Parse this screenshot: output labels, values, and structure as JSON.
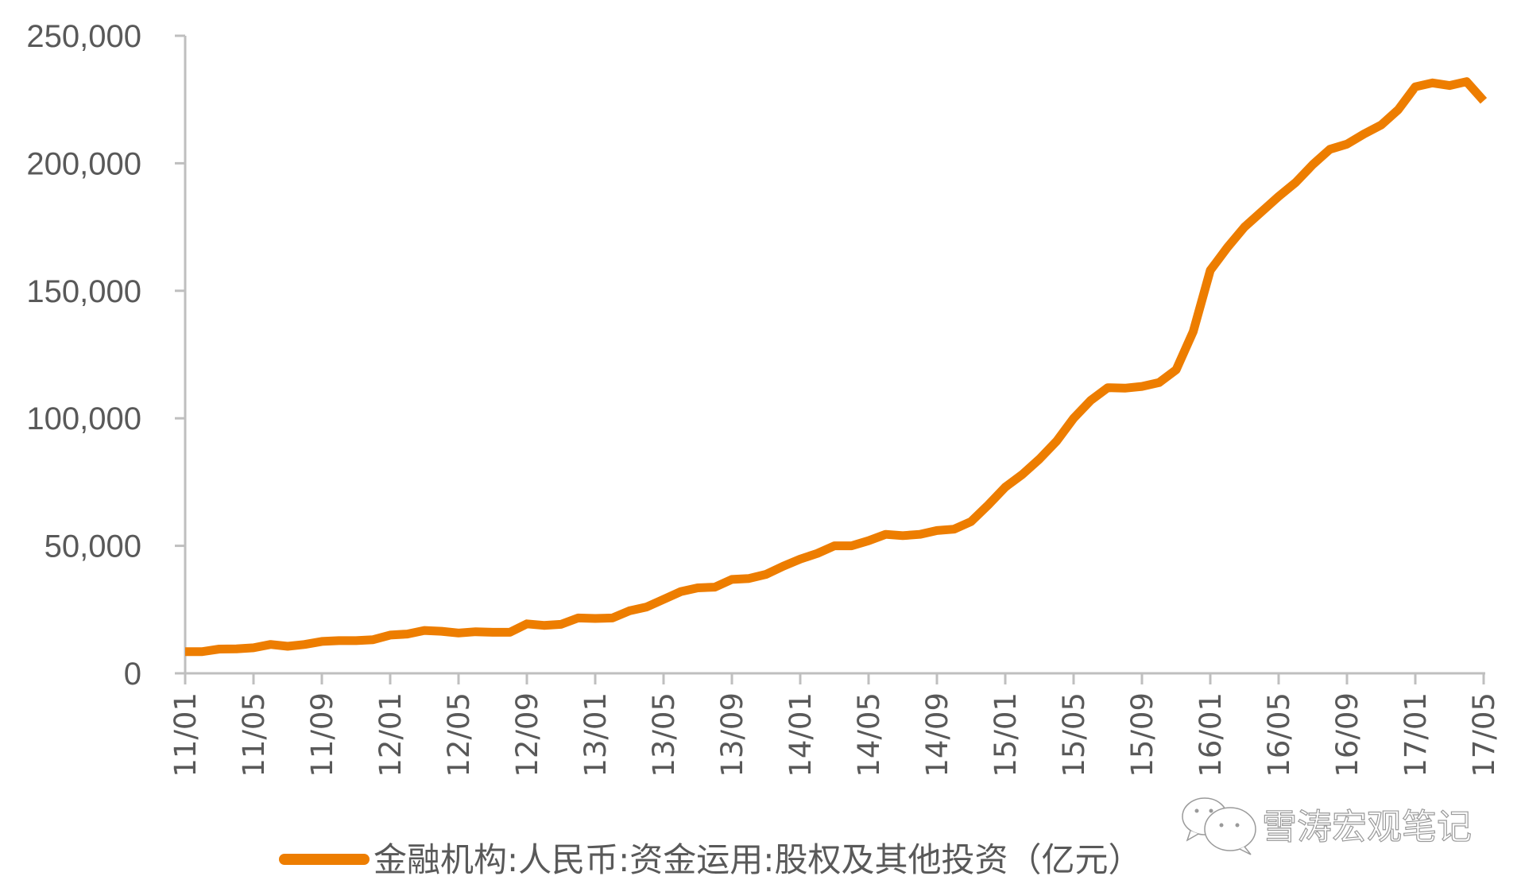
{
  "chart_data": {
    "type": "line",
    "title": "",
    "xlabel": "",
    "ylabel": "",
    "ylim": [
      0,
      250000
    ],
    "yticks": [
      "0",
      "50,000",
      "100,000",
      "150,000",
      "200,000",
      "250,000"
    ],
    "ytick_values": [
      0,
      50000,
      100000,
      150000,
      200000,
      250000
    ],
    "xtick_labels": [
      "11/01",
      "11/05",
      "11/09",
      "12/01",
      "12/05",
      "12/09",
      "13/01",
      "13/05",
      "13/09",
      "14/01",
      "14/05",
      "14/09",
      "15/01",
      "15/05",
      "15/09",
      "16/01",
      "16/05",
      "16/09",
      "17/01",
      "17/05"
    ],
    "grid": false,
    "legend_position": "bottom",
    "series": [
      {
        "name": "金融机构:人民币:资金运用:股权及其他投资（亿元）",
        "color": "#ED7D00",
        "x": [
          "11/01",
          "11/02",
          "11/03",
          "11/04",
          "11/05",
          "11/06",
          "11/07",
          "11/08",
          "11/09",
          "11/10",
          "11/11",
          "11/12",
          "12/01",
          "12/02",
          "12/03",
          "12/04",
          "12/05",
          "12/06",
          "12/07",
          "12/08",
          "12/09",
          "12/10",
          "12/11",
          "12/12",
          "13/01",
          "13/02",
          "13/03",
          "13/04",
          "13/05",
          "13/06",
          "13/07",
          "13/08",
          "13/09",
          "13/10",
          "13/11",
          "13/12",
          "14/01",
          "14/02",
          "14/03",
          "14/04",
          "14/05",
          "14/06",
          "14/07",
          "14/08",
          "14/09",
          "14/10",
          "14/11",
          "14/12",
          "15/01",
          "15/02",
          "15/03",
          "15/04",
          "15/05",
          "15/06",
          "15/07",
          "15/08",
          "15/09",
          "15/10",
          "15/11",
          "15/12",
          "16/01",
          "16/02",
          "16/03",
          "16/04",
          "16/05",
          "16/06",
          "16/07",
          "16/08",
          "16/09",
          "16/10",
          "16/11",
          "16/12",
          "17/01",
          "17/02",
          "17/03",
          "17/04",
          "17/05"
        ],
        "values": [
          8500,
          8500,
          9500,
          9600,
          10000,
          11300,
          10600,
          11300,
          12500,
          12800,
          12800,
          13200,
          15000,
          15400,
          16800,
          16500,
          15800,
          16300,
          16100,
          16100,
          19400,
          18800,
          19200,
          21700,
          21500,
          21700,
          24500,
          26000,
          29000,
          32000,
          33500,
          33800,
          36800,
          37200,
          38800,
          42000,
          44800,
          47000,
          50000,
          50000,
          52000,
          54500,
          54000,
          54500,
          56000,
          56500,
          59500,
          66000,
          73000,
          78000,
          84000,
          91000,
          100000,
          107000,
          112000,
          111800,
          112500,
          114000,
          119000,
          134000,
          158000,
          167000,
          175000,
          181000,
          187000,
          192500,
          199500,
          205500,
          207500,
          211500,
          215000,
          221000,
          230000,
          231500,
          230500,
          232000,
          224500
        ]
      }
    ]
  },
  "legend": {
    "label": "金融机构:人民币:资金运用:股权及其他投资（亿元）"
  },
  "watermark": {
    "icon": "wechat-icon",
    "text": "雪涛宏观笔记"
  }
}
